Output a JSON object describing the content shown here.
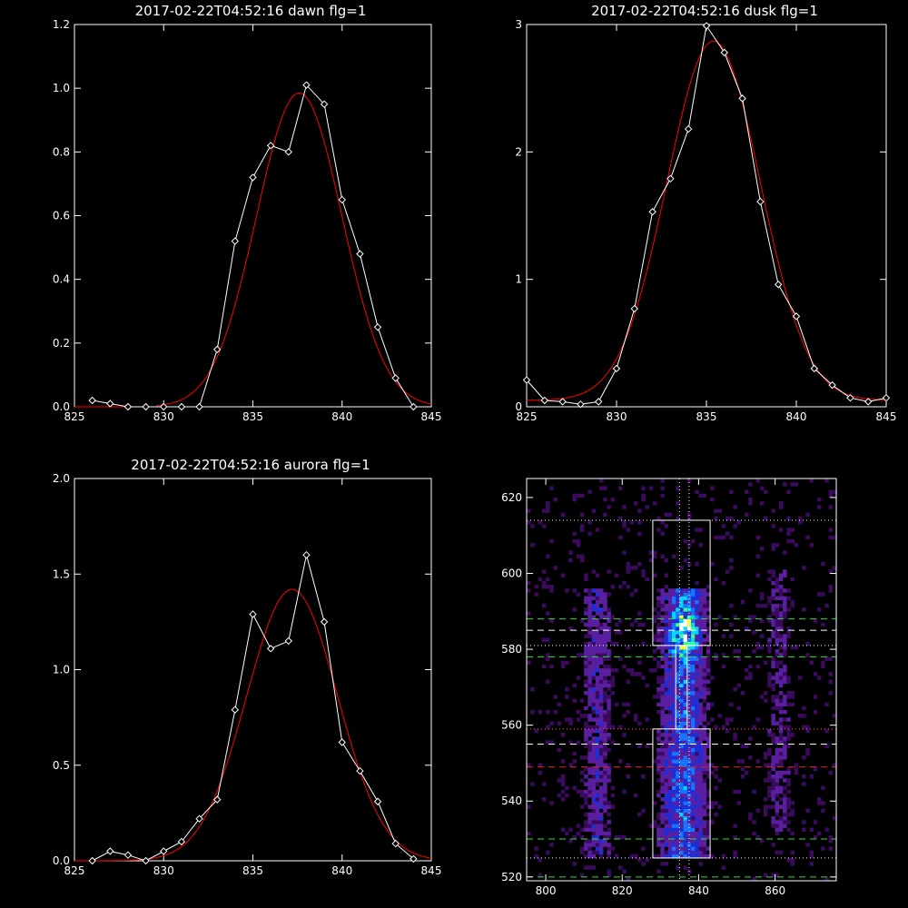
{
  "chart_data": [
    {
      "type": "line",
      "title": "2017-02-22T04:52:16 dawn flg=1",
      "xlim": [
        825,
        845
      ],
      "ylim": [
        0,
        1.2
      ],
      "xticks": [
        "825",
        "830",
        "835",
        "840",
        "845"
      ],
      "yticks": [
        "0.0",
        "0.2",
        "0.4",
        "0.6",
        "0.8",
        "1.0",
        "1.2"
      ],
      "series": [
        {
          "kind": "observed",
          "color": "#ffffff",
          "marker": "diamond",
          "x": [
            826,
            827,
            828,
            829,
            830,
            831,
            832,
            833,
            834,
            835,
            836,
            837,
            838,
            839,
            840,
            841,
            842,
            843,
            844
          ],
          "y": [
            0.02,
            0.01,
            0.0,
            0.0,
            0.0,
            0.0,
            0.0,
            0.18,
            0.52,
            0.72,
            0.82,
            0.8,
            1.01,
            0.95,
            0.65,
            0.48,
            0.25,
            0.09,
            0.0
          ]
        },
        {
          "kind": "fit",
          "color": "#ff0000",
          "gaussian": {
            "amp": 0.985,
            "center": 837.6,
            "sigma": 2.4,
            "cutoff": 0.0
          }
        }
      ]
    },
    {
      "type": "line",
      "title": "2017-02-22T04:52:16 dusk flg=1",
      "xlim": [
        825,
        845
      ],
      "ylim": [
        0,
        3
      ],
      "xticks": [
        "825",
        "830",
        "835",
        "840",
        "845"
      ],
      "yticks": [
        "0",
        "1",
        "2",
        "3"
      ],
      "series": [
        {
          "kind": "observed",
          "color": "#ffffff",
          "marker": "diamond",
          "x": [
            825,
            826,
            827,
            828,
            829,
            830,
            831,
            832,
            833,
            834,
            835,
            836,
            837,
            838,
            839,
            840,
            841,
            842,
            843,
            844,
            845
          ],
          "y": [
            0.21,
            0.05,
            0.04,
            0.02,
            0.04,
            0.3,
            0.77,
            1.53,
            1.79,
            2.18,
            2.99,
            2.78,
            2.42,
            1.61,
            0.96,
            0.71,
            0.3,
            0.17,
            0.07,
            0.04,
            0.07
          ]
        },
        {
          "kind": "fit",
          "color": "#ff0000",
          "gaussian": {
            "amp": 2.82,
            "center": 835.4,
            "sigma": 2.6,
            "offset": 0.05
          }
        }
      ]
    },
    {
      "type": "line",
      "title": "2017-02-22T04:52:16 aurora flg=1",
      "xlim": [
        825,
        845
      ],
      "ylim": [
        0,
        2.0
      ],
      "xticks": [
        "825",
        "830",
        "835",
        "840",
        "845"
      ],
      "yticks": [
        "0.0",
        "0.5",
        "1.0",
        "1.5",
        "2.0"
      ],
      "series": [
        {
          "kind": "observed",
          "color": "#ffffff",
          "marker": "diamond",
          "x": [
            826,
            827,
            828,
            829,
            830,
            831,
            832,
            833,
            834,
            835,
            836,
            837,
            838,
            839,
            840,
            841,
            842,
            843,
            844
          ],
          "y": [
            0.0,
            0.05,
            0.03,
            0.0,
            0.05,
            0.1,
            0.22,
            0.32,
            0.79,
            1.29,
            1.11,
            1.15,
            1.6,
            1.25,
            0.62,
            0.47,
            0.31,
            0.09,
            0.01
          ]
        },
        {
          "kind": "fit",
          "color": "#ff0000",
          "gaussian": {
            "amp": 1.42,
            "center": 837.2,
            "sigma": 2.55,
            "offset": 0.0
          }
        }
      ]
    },
    {
      "type": "heatmap",
      "title": "",
      "xlim": [
        795,
        876
      ],
      "ylim": [
        519,
        625
      ],
      "xticks": [
        "800",
        "820",
        "840",
        "860"
      ],
      "yticks": [
        "520",
        "540",
        "560",
        "580",
        "600",
        "620"
      ],
      "colormap": [
        "#3a0a5c",
        "#5a1fa0",
        "#1f2dd6",
        "#1575ff",
        "#00d8ff",
        "#36ff8a",
        "#f2ff33",
        "#ffffff"
      ],
      "emission_columns": [
        {
          "x_range": [
            828,
            843
          ],
          "y_range": [
            525,
            595
          ],
          "intensity": "high"
        },
        {
          "x_range": [
            808,
            818
          ],
          "y_range": [
            525,
            595
          ],
          "intensity": "medium"
        },
        {
          "x_range": [
            855,
            866
          ],
          "y_range": [
            532,
            600
          ],
          "intensity": "low"
        }
      ],
      "hotspot": {
        "x": 836,
        "y": 584
      },
      "boxes": [
        {
          "x": [
            828,
            843
          ],
          "y": [
            581,
            614
          ]
        },
        {
          "x": [
            828,
            843
          ],
          "y": [
            525,
            559
          ]
        },
        {
          "x": [
            834,
            837
          ],
          "y": [
            559,
            581
          ]
        }
      ],
      "vlines": [
        {
          "x": 835,
          "color": "#ffffff",
          "style": "dotted"
        },
        {
          "x": 837.5,
          "color": "#ffffff",
          "style": "dotted"
        }
      ],
      "hlines": [
        {
          "y": 614,
          "color": "#ffffff",
          "style": "dotted"
        },
        {
          "y": 588,
          "color": "#33dd33",
          "style": "dashed"
        },
        {
          "y": 585,
          "color": "#ffffff",
          "style": "dashed"
        },
        {
          "y": 581,
          "color": "#ffffff",
          "style": "dotted"
        },
        {
          "y": 578,
          "color": "#33dd33",
          "style": "dashed"
        },
        {
          "y": 559,
          "color": "#ff5555",
          "style": "dotted"
        },
        {
          "y": 555,
          "color": "#ffffff",
          "style": "dashed"
        },
        {
          "y": 549,
          "color": "#dd2222",
          "style": "dashed"
        },
        {
          "y": 530,
          "color": "#33dd33",
          "style": "dashed"
        },
        {
          "y": 525,
          "color": "#ffffff",
          "style": "dotted"
        },
        {
          "y": 520,
          "color": "#33dd33",
          "style": "dashed"
        }
      ]
    }
  ]
}
